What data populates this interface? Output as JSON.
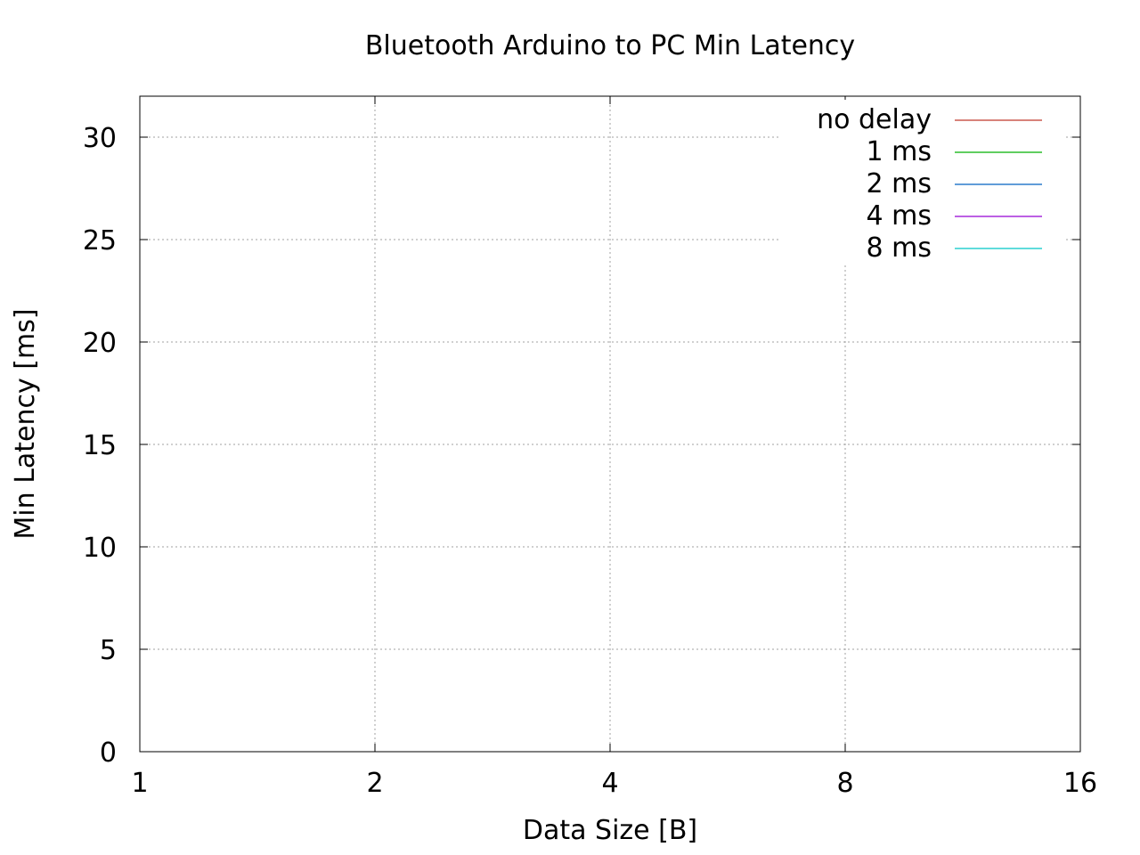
{
  "chart_data": {
    "type": "line",
    "title": "Bluetooth Arduino to PC Min Latency",
    "xlabel": "Data Size [B]",
    "ylabel": "Min Latency [ms]",
    "x_scale": "log2",
    "xlim": [
      1,
      16
    ],
    "ylim": [
      0,
      32
    ],
    "x_ticks": [
      1,
      2,
      4,
      8,
      16
    ],
    "x_tick_labels": [
      "1",
      "2",
      "4",
      "8",
      "16"
    ],
    "y_ticks": [
      0,
      5,
      10,
      15,
      20,
      25,
      30
    ],
    "y_tick_labels": [
      "0",
      "5",
      "10",
      "15",
      "20",
      "25",
      "30"
    ],
    "grid": true,
    "legend_position": "top-right",
    "series": [
      {
        "name": "no delay",
        "color": "#c0392b",
        "values": []
      },
      {
        "name": "1 ms",
        "color": "#00b000",
        "values": []
      },
      {
        "name": "2 ms",
        "color": "#0060c0",
        "values": []
      },
      {
        "name": "4 ms",
        "color": "#9400d3",
        "values": []
      },
      {
        "name": "8 ms",
        "color": "#00c8c8",
        "values": []
      }
    ]
  }
}
